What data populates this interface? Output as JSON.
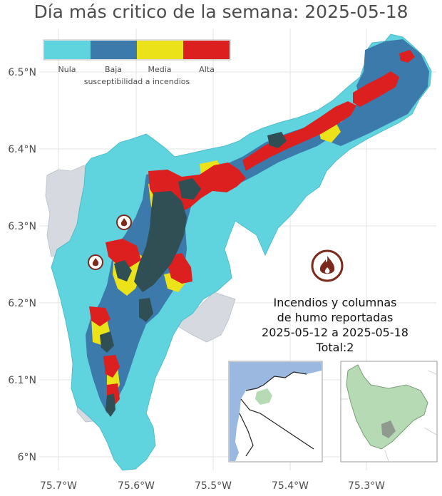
{
  "title": "Día más critico de la semana: 2025-05-18",
  "legend": {
    "title": "susceptibilidad a incendios",
    "items": [
      {
        "label": "Nula",
        "color": "#5fd3de"
      },
      {
        "label": "Baja",
        "color": "#3b7aaa"
      },
      {
        "label": "Media",
        "color": "#ece21a"
      },
      {
        "label": "Alta",
        "color": "#dc1f1f"
      }
    ]
  },
  "axes": {
    "x_ticks": [
      "75.7°W",
      "75.6°W",
      "75.5°W",
      "75.4°W",
      "75.3°W"
    ],
    "y_ticks": [
      "6.5°N",
      "6.4°N",
      "6.3°N",
      "6.2°N",
      "6.1°N",
      "6°N"
    ]
  },
  "summary": {
    "line1": "Incendios y columnas",
    "line2": "de humo reportadas",
    "line3": "2025-05-12 a 2025-05-18",
    "line4": "Total:2"
  },
  "fire_reports": [
    {
      "lon": -75.588,
      "lat": 6.305
    },
    {
      "lon": -75.632,
      "lat": 6.254
    }
  ],
  "colors": {
    "background": "#ffffff",
    "grid": "#e3e3e3",
    "neighbor_area": "#d6dae0",
    "dark_cover": "#2f4f55",
    "inset_sea": "#9bb9e0",
    "inset_region": "#b6dbb4",
    "fire_icon": "#7b2a1c"
  }
}
